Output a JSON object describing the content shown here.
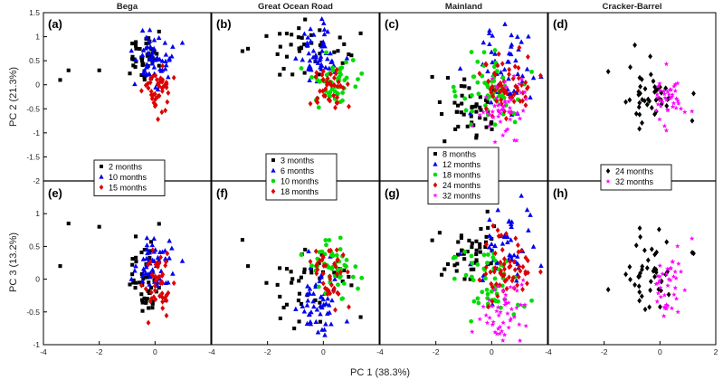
{
  "chart_data": {
    "type": "scatter",
    "xlabel": "PC 1 (38.3%)",
    "ylabel_top": "PC 2 (21.3%)",
    "ylabel_bottom": "PC 3 (13.2%)",
    "top_ylim": [
      -2,
      1.5
    ],
    "bottom_ylim": [
      -1,
      1.5
    ],
    "top_yticks": [
      "1.5",
      "1",
      "0.5",
      "0",
      "-0.5",
      "-1",
      "-1.5",
      "-2"
    ],
    "bottom_yticks": [
      "1",
      "0.5",
      "0",
      "-0.5",
      "-1"
    ],
    "panel_xlim": [
      -4,
      2
    ],
    "x_tick_labels": [
      "-4",
      "-2",
      "0",
      "2",
      "-4",
      "-2",
      "0",
      "2",
      "-4",
      "-2",
      "0",
      "2",
      "-4",
      "-2",
      "0",
      "2"
    ],
    "colors": {
      "m2": "#000000",
      "m3": "#000000",
      "m8": "#000000",
      "m6": "#0000ee",
      "m10_bega": "#0000ee",
      "m12": "#0000ee",
      "m10_gor": "#00dd00",
      "m18_main": "#00dd00",
      "m15": "#dd0000",
      "m18_gor": "#dd0000",
      "m24_main": "#dd0000",
      "m24_cb": "#000000",
      "m32": "#ff00ff"
    },
    "columns": [
      {
        "name": "Bega",
        "labels": [
          "(a)",
          "(e)"
        ],
        "legend": [
          {
            "label": "2 months",
            "marker": "square",
            "color": "#000000"
          },
          {
            "label": "10 months",
            "marker": "triangle",
            "color": "#0000ee"
          },
          {
            "label": "15 months",
            "marker": "diamond",
            "color": "#dd0000"
          }
        ],
        "clusters": [
          {
            "label": "2 months",
            "marker": "square",
            "color": "#000000",
            "n": 45,
            "pc1": [
              -0.4,
              0.35
            ],
            "pc2": [
              0.5,
              0.25
            ],
            "pc3": [
              0.0,
              0.35
            ],
            "outliers": [
              [
                -3.4,
                0.1,
                0.2
              ],
              [
                -3.1,
                0.3,
                0.85
              ],
              [
                -2.0,
                0.3,
                0.8
              ]
            ]
          },
          {
            "label": "10 months",
            "marker": "triangle",
            "color": "#0000ee",
            "n": 55,
            "pc1": [
              -0.05,
              0.35
            ],
            "pc2": [
              0.55,
              0.25
            ],
            "pc3": [
              0.2,
              0.2
            ]
          },
          {
            "label": "15 months",
            "marker": "diamond",
            "color": "#dd0000",
            "n": 45,
            "pc1": [
              0.1,
              0.25
            ],
            "pc2": [
              -0.1,
              0.25
            ],
            "pc3": [
              -0.05,
              0.25
            ]
          }
        ]
      },
      {
        "name": "Great Ocean Road",
        "labels": [
          "(b)",
          "(f)"
        ],
        "legend": [
          {
            "label": "3 months",
            "marker": "square",
            "color": "#000000"
          },
          {
            "label": "6 months",
            "marker": "triangle",
            "color": "#0000ee"
          },
          {
            "label": "10 months",
            "marker": "circle",
            "color": "#00dd00"
          },
          {
            "label": "18 months",
            "marker": "diamond",
            "color": "#dd0000"
          }
        ],
        "clusters": [
          {
            "label": "3 months",
            "marker": "square",
            "color": "#000000",
            "n": 40,
            "pc1": [
              -0.6,
              0.7
            ],
            "pc2": [
              0.7,
              0.3
            ],
            "pc3": [
              0.0,
              0.3
            ],
            "outliers": [
              [
                -2.9,
                0.7,
                0.6
              ],
              [
                -2.7,
                0.75,
                0.2
              ]
            ]
          },
          {
            "label": "6 months",
            "marker": "triangle",
            "color": "#0000ee",
            "n": 55,
            "pc1": [
              -0.2,
              0.4
            ],
            "pc2": [
              0.6,
              0.3
            ],
            "pc3": [
              -0.45,
              0.3
            ]
          },
          {
            "label": "10 months",
            "marker": "circle",
            "color": "#00dd00",
            "n": 55,
            "pc1": [
              0.3,
              0.45
            ],
            "pc2": [
              0.1,
              0.25
            ],
            "pc3": [
              0.2,
              0.25
            ]
          },
          {
            "label": "18 months",
            "marker": "diamond",
            "color": "#dd0000",
            "n": 40,
            "pc1": [
              0.2,
              0.3
            ],
            "pc2": [
              -0.05,
              0.2
            ],
            "pc3": [
              0.05,
              0.25
            ]
          }
        ]
      },
      {
        "name": "Mainland",
        "labels": [
          "(c)",
          "(g)"
        ],
        "legend": [
          {
            "label": "8 months",
            "marker": "square",
            "color": "#000000"
          },
          {
            "label": "12 months",
            "marker": "triangle",
            "color": "#0000ee"
          },
          {
            "label": "18 months",
            "marker": "circle",
            "color": "#00dd00"
          },
          {
            "label": "24 months",
            "marker": "diamond",
            "color": "#dd0000"
          },
          {
            "label": "32 months",
            "marker": "star",
            "color": "#ff00ff"
          }
        ],
        "clusters": [
          {
            "label": "8 months",
            "marker": "square",
            "color": "#000000",
            "n": 45,
            "pc1": [
              -0.8,
              0.55
            ],
            "pc2": [
              -0.5,
              0.35
            ],
            "pc3": [
              0.45,
              0.25
            ]
          },
          {
            "label": "12 months",
            "marker": "triangle",
            "color": "#0000ee",
            "n": 50,
            "pc1": [
              0.6,
              0.6
            ],
            "pc2": [
              0.3,
              0.45
            ],
            "pc3": [
              0.4,
              0.35
            ]
          },
          {
            "label": "18 months",
            "marker": "circle",
            "color": "#00dd00",
            "n": 55,
            "pc1": [
              0.0,
              0.55
            ],
            "pc2": [
              -0.1,
              0.35
            ],
            "pc3": [
              0.0,
              0.3
            ]
          },
          {
            "label": "24 months",
            "marker": "diamond",
            "color": "#dd0000",
            "n": 60,
            "pc1": [
              0.6,
              0.45
            ],
            "pc2": [
              -0.1,
              0.3
            ],
            "pc3": [
              0.05,
              0.3
            ]
          },
          {
            "label": "32 months",
            "marker": "star",
            "color": "#ff00ff",
            "n": 50,
            "pc1": [
              0.4,
              0.45
            ],
            "pc2": [
              -0.5,
              0.3
            ],
            "pc3": [
              -0.55,
              0.3
            ]
          }
        ]
      },
      {
        "name": "Cracker-Barrel",
        "labels": [
          "(d)",
          "(h)"
        ],
        "legend": [
          {
            "label": "24 months",
            "marker": "diamond",
            "color": "#000000"
          },
          {
            "label": "32 months",
            "marker": "star",
            "color": "#ff00ff"
          }
        ],
        "clusters": [
          {
            "label": "24 months",
            "marker": "diamond",
            "color": "#000000",
            "n": 45,
            "pc1": [
              -0.4,
              0.5
            ],
            "pc2": [
              -0.15,
              0.35
            ],
            "pc3": [
              0.05,
              0.35
            ]
          },
          {
            "label": "32 months",
            "marker": "star",
            "color": "#ff00ff",
            "n": 40,
            "pc1": [
              0.3,
              0.3
            ],
            "pc2": [
              -0.35,
              0.25
            ],
            "pc3": [
              -0.05,
              0.25
            ]
          }
        ]
      }
    ]
  }
}
